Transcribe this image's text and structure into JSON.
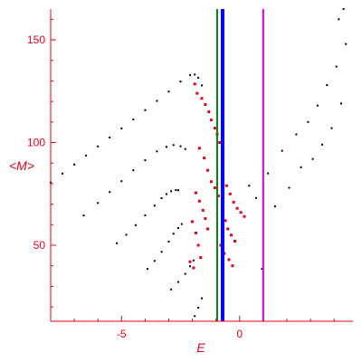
{
  "chart_data": {
    "type": "scatter",
    "title": "",
    "xlabel": "E",
    "ylabel": "<M>",
    "xlim": [
      -8.0,
      4.8
    ],
    "ylim": [
      13,
      165
    ],
    "x_ticks": [
      -5,
      0
    ],
    "y_ticks": [
      50,
      100,
      150
    ],
    "x_tick_labels": [
      "-5",
      "0"
    ],
    "y_tick_labels": [
      "50",
      "100",
      "150"
    ],
    "grid": false,
    "legend": "none",
    "axis_color": "#e8001c",
    "vertical_lines": [
      {
        "x": -0.95,
        "color": "#008a00"
      },
      {
        "x": -0.72,
        "color": "#0000ff"
      },
      {
        "x": 1.0,
        "color": "#dd00dd"
      }
    ],
    "series": [
      {
        "color": "#000000",
        "values": [
          [
            -8.0,
            80.5
          ],
          [
            -7.5,
            84.9
          ],
          [
            -7.0,
            89.3
          ],
          [
            -6.5,
            93.7
          ],
          [
            -6.0,
            98.1
          ],
          [
            -5.5,
            102.5
          ],
          [
            -5.0,
            106.9
          ],
          [
            -4.5,
            111.3
          ],
          [
            -4.0,
            115.8
          ],
          [
            -3.5,
            120.3
          ],
          [
            -3.0,
            124.8
          ],
          [
            -2.5,
            129.7
          ],
          [
            -2.1,
            132.9
          ],
          [
            -1.9,
            133.1
          ],
          [
            -1.75,
            131.5
          ],
          [
            -1.6,
            127.8
          ],
          [
            -6.6,
            64.5
          ],
          [
            -6.0,
            70.6
          ],
          [
            -5.5,
            75.9
          ],
          [
            -5.0,
            81.2
          ],
          [
            -4.5,
            86.5
          ],
          [
            -4.0,
            91.4
          ],
          [
            -3.5,
            95.7
          ],
          [
            -3.1,
            97.9
          ],
          [
            -2.8,
            98.8
          ],
          [
            -2.5,
            98.2
          ],
          [
            -2.3,
            96.9
          ],
          [
            -5.2,
            51.0
          ],
          [
            -4.8,
            55.1
          ],
          [
            -4.4,
            59.8
          ],
          [
            -4.0,
            64.6
          ],
          [
            -3.6,
            69.3
          ],
          [
            -3.3,
            72.9
          ],
          [
            -3.1,
            74.9
          ],
          [
            -2.9,
            76.3
          ],
          [
            -2.7,
            76.9
          ],
          [
            -2.6,
            76.8
          ],
          [
            -3.9,
            38.5
          ],
          [
            -3.6,
            42.4
          ],
          [
            -3.3,
            46.8
          ],
          [
            -3.0,
            51.8
          ],
          [
            -2.8,
            55.6
          ],
          [
            -2.6,
            58.4
          ],
          [
            -2.45,
            60.3
          ],
          [
            -2.9,
            28.5
          ],
          [
            -2.6,
            32.1
          ],
          [
            -2.3,
            36.1
          ],
          [
            -2.1,
            39.8
          ],
          [
            -1.95,
            42.6
          ],
          [
            -1.9,
            15.5
          ],
          [
            -1.75,
            19.6
          ],
          [
            -1.6,
            24.2
          ],
          [
            0.95,
            38.5
          ],
          [
            0.4,
            79.0
          ],
          [
            0.7,
            73.0
          ],
          [
            1.2,
            85.0
          ],
          [
            1.5,
            69.0
          ],
          [
            1.8,
            96.0
          ],
          [
            2.1,
            78.0
          ],
          [
            2.4,
            104.0
          ],
          [
            2.6,
            88.0
          ],
          [
            2.9,
            110.0
          ],
          [
            3.1,
            92.0
          ],
          [
            3.3,
            118.0
          ],
          [
            3.5,
            99.0
          ],
          [
            3.7,
            128.0
          ],
          [
            3.9,
            107.0
          ],
          [
            4.1,
            137.0
          ],
          [
            4.3,
            119.0
          ],
          [
            4.5,
            148.0
          ],
          [
            4.2,
            160.0
          ],
          [
            4.4,
            165.0
          ]
        ]
      },
      {
        "color": "#e8001c",
        "values": [
          [
            -1.9,
            128.5
          ],
          [
            -1.8,
            124.0
          ],
          [
            -1.6,
            121.5
          ],
          [
            -1.45,
            118.5
          ],
          [
            -1.3,
            115.0
          ],
          [
            -1.2,
            111.0
          ],
          [
            -1.05,
            107.0
          ],
          [
            -0.95,
            104.0
          ],
          [
            -0.85,
            100.0
          ],
          [
            -1.7,
            97.3
          ],
          [
            -1.5,
            92.5
          ],
          [
            -1.35,
            86.5
          ],
          [
            -1.2,
            81.0
          ],
          [
            -1.05,
            78.0
          ],
          [
            -0.9,
            74.0
          ],
          [
            -1.85,
            75.5
          ],
          [
            -1.7,
            71.5
          ],
          [
            -1.55,
            67.0
          ],
          [
            -1.45,
            63.0
          ],
          [
            -1.35,
            58.0
          ],
          [
            -2.0,
            61.5
          ],
          [
            -1.85,
            56.0
          ],
          [
            -1.75,
            50.0
          ],
          [
            -1.65,
            44.0
          ],
          [
            -2.1,
            42.0
          ],
          [
            -1.95,
            39.0
          ],
          [
            -0.7,
            88.0
          ],
          [
            -0.7,
            83.0
          ],
          [
            -0.55,
            79.0
          ],
          [
            -0.4,
            75.0
          ],
          [
            -0.25,
            71.0
          ],
          [
            -0.1,
            68.0
          ],
          [
            0.05,
            66.0
          ],
          [
            0.2,
            64.0
          ],
          [
            -0.6,
            62.0
          ],
          [
            -0.5,
            58.0
          ],
          [
            -0.35,
            55.0
          ],
          [
            -0.2,
            52.0
          ],
          [
            -0.8,
            50.0
          ],
          [
            -0.65,
            46.0
          ],
          [
            -0.45,
            43.0
          ],
          [
            -0.3,
            40.0
          ]
        ]
      }
    ]
  }
}
